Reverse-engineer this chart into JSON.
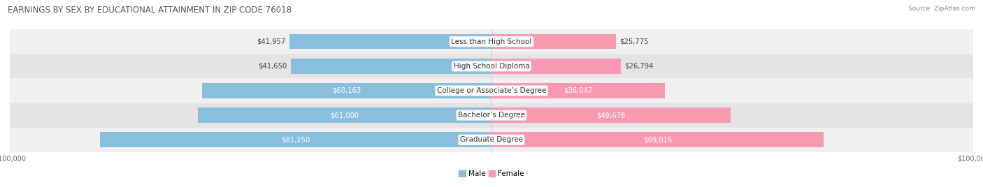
{
  "title": "EARNINGS BY SEX BY EDUCATIONAL ATTAINMENT IN ZIP CODE 76018",
  "source": "Source: ZipAtlas.com",
  "categories": [
    "Less than High School",
    "High School Diploma",
    "College or Associate’s Degree",
    "Bachelor’s Degree",
    "Graduate Degree"
  ],
  "male_values": [
    41957,
    41650,
    60163,
    61000,
    81250
  ],
  "female_values": [
    25775,
    26794,
    36047,
    49678,
    69015
  ],
  "male_labels": [
    "$41,957",
    "$41,650",
    "$60,163",
    "$61,000",
    "$81,250"
  ],
  "female_labels": [
    "$25,775",
    "$26,794",
    "$36,047",
    "$49,678",
    "$69,015"
  ],
  "max_value": 100000,
  "male_color": "#89bedd",
  "female_color": "#f799b0",
  "row_bg_even": "#f0f0f0",
  "row_bg_odd": "#e4e4e4",
  "title_fontsize": 8.5,
  "source_fontsize": 6.5,
  "label_fontsize": 7.2,
  "category_fontsize": 7.5,
  "legend_fontsize": 7.5,
  "axis_fontsize": 7,
  "background_color": "#ffffff",
  "male_inside_threshold": 45000,
  "female_inside_threshold": 30000
}
